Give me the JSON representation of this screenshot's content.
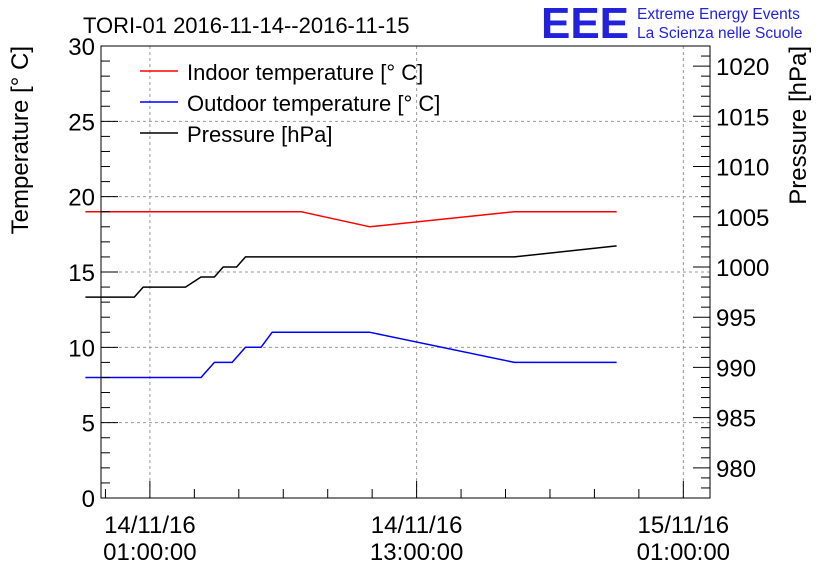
{
  "chart_data": {
    "type": "line",
    "title": "TORI-01 2016-11-14--2016-11-15",
    "ylabel": "Temperature [° C]",
    "y2label": "Pressure [hPa]",
    "ylim": [
      0,
      30
    ],
    "y2lim": [
      977,
      1022
    ],
    "yticks": [
      "0",
      "5",
      "10",
      "15",
      "20",
      "25",
      "30"
    ],
    "y2ticks": [
      "980",
      "985",
      "990",
      "995",
      "1000",
      "1005",
      "1010",
      "1015",
      "1020"
    ],
    "x_unit": "hours since 2016-11-14 00:00",
    "xlim": [
      -1.2,
      26.2
    ],
    "xticks": [
      {
        "at": 1,
        "date": "14/11/16",
        "time": "01:00:00"
      },
      {
        "at": 13,
        "date": "14/11/16",
        "time": "13:00:00"
      },
      {
        "at": 25,
        "date": "15/11/16",
        "time": "01:00:00"
      }
    ],
    "grid": true,
    "legend_position": "top-left",
    "series": [
      {
        "name": "Indoor temperature [° C]",
        "color": "#ff0000",
        "axis": "left",
        "points": [
          [
            -1.9,
            19
          ],
          [
            7.8,
            19
          ],
          [
            10.9,
            18
          ],
          [
            17.4,
            19
          ],
          [
            22,
            19
          ]
        ]
      },
      {
        "name": "Outdoor temperature [° C]",
        "color": "#0000ff",
        "axis": "left",
        "points": [
          [
            -1.9,
            8
          ],
          [
            3.3,
            8
          ],
          [
            3.9,
            9
          ],
          [
            4.7,
            9
          ],
          [
            5.3,
            10
          ],
          [
            6,
            10
          ],
          [
            6.5,
            11
          ],
          [
            10.9,
            11
          ],
          [
            17.4,
            9
          ],
          [
            22,
            9
          ]
        ]
      },
      {
        "name": "Pressure [hPa]",
        "color": "#000000",
        "axis": "right",
        "points": [
          [
            -1.9,
            997
          ],
          [
            0.3,
            997
          ],
          [
            0.7,
            998
          ],
          [
            2.6,
            998
          ],
          [
            3.3,
            999
          ],
          [
            3.9,
            999
          ],
          [
            4.3,
            1000
          ],
          [
            4.9,
            1000
          ],
          [
            5.3,
            1001
          ],
          [
            17.4,
            1001
          ],
          [
            22,
            1002.1
          ]
        ]
      }
    ]
  },
  "logo": {
    "text": "EEE",
    "line1": "Extreme Energy Events",
    "line2": "La Scienza nelle Scuole",
    "color": "#2222dd"
  }
}
